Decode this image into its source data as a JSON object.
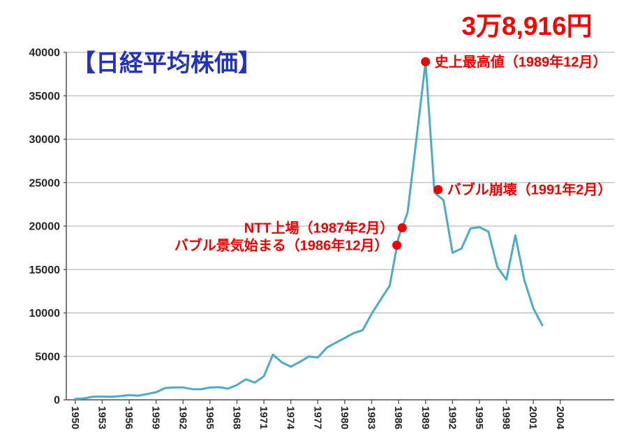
{
  "title": "【日経平均株価】",
  "peak_value_label": "3万8,916円",
  "colors": {
    "line": "#4BACC6",
    "annotation_red": "#EE0000",
    "callout_red": "#FF0000",
    "title_blue": "#2333B8",
    "grid": "#ABABAB",
    "axis": "#4D4D4D",
    "tick_label": "#262626"
  },
  "chart_data": {
    "type": "line",
    "title": "【日経平均株価】",
    "xlabel": "",
    "ylabel": "",
    "grid": "horizontal",
    "legend": "none",
    "xlim": [
      1949,
      2010
    ],
    "ylim": [
      0,
      40000
    ],
    "y_ticks": [
      0,
      5000,
      10000,
      15000,
      20000,
      25000,
      30000,
      35000,
      40000
    ],
    "x_tick_labels": [
      "1950",
      "1953",
      "1956",
      "1959",
      "1962",
      "1965",
      "1968",
      "1971",
      "1974",
      "1977",
      "1980",
      "1983",
      "1986",
      "1989",
      "1992",
      "1995",
      "1998",
      "2001",
      "2004"
    ],
    "x": [
      1950,
      1951,
      1952,
      1953,
      1954,
      1955,
      1956,
      1957,
      1958,
      1959,
      1960,
      1961,
      1962,
      1963,
      1964,
      1965,
      1966,
      1967,
      1968,
      1969,
      1970,
      1971,
      1972,
      1973,
      1974,
      1975,
      1976,
      1977,
      1978,
      1979,
      1980,
      1981,
      1982,
      1983,
      1984,
      1985,
      1986,
      1987,
      1988,
      1989,
      1990,
      1991,
      1992,
      1993,
      1994,
      1995,
      1996,
      1997,
      1998,
      1999,
      2000,
      2001,
      2002
    ],
    "values": [
      101,
      166,
      362,
      377,
      356,
      425,
      549,
      474,
      666,
      874,
      1356,
      1432,
      1420,
      1225,
      1216,
      1417,
      1452,
      1283,
      1714,
      2358,
      1987,
      2713,
      5207,
      4306,
      3817,
      4358,
      4990,
      4865,
      6001,
      6569,
      7116,
      7681,
      8016,
      9893,
      11542,
      13113,
      18701,
      21564,
      30159,
      38915,
      23848,
      22983,
      16924,
      17417,
      19723,
      19868,
      19361,
      15258,
      13842,
      18934,
      13785,
      10542,
      8578
    ],
    "annotations": [
      {
        "name": "all-time-high",
        "label": "史上最高値（1989年12月）",
        "year": 1989,
        "value": 38916,
        "label_side": "right"
      },
      {
        "name": "bubble-collapse",
        "label": "バブル崩壊（1991年2月）",
        "year": 1990.4,
        "value": 24200,
        "label_side": "right"
      },
      {
        "name": "ntt-listing",
        "label": "NTT上場（1987年2月）",
        "year": 1986.4,
        "value": 19800,
        "label_side": "left"
      },
      {
        "name": "bubble-begins",
        "label": "バブル景気始まる（1986年12月）",
        "year": 1985.8,
        "value": 17800,
        "label_side": "left"
      }
    ]
  }
}
